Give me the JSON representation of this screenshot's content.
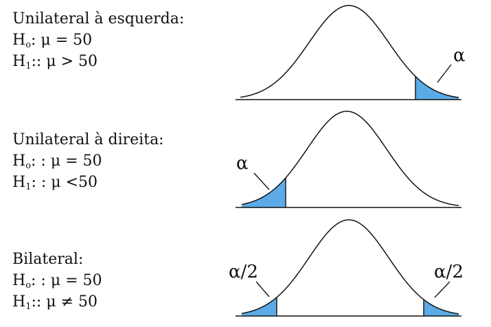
{
  "panels": [
    {
      "title": "Unilateral à esquerda:",
      "h0": ": μ = 50",
      "h1": ":: μ > 50",
      "alpha_label": "α"
    },
    {
      "title": "Unilateral à direita:",
      "h0": ": : μ = 50",
      "h1": ": : μ <50",
      "alpha_label": "α"
    },
    {
      "title": "Bilateral:",
      "h0": ": : μ = 50",
      "h1": ":: μ ≠ 50",
      "alpha_left": "α/2",
      "alpha_right": "α/2"
    }
  ],
  "h_symbol": "H",
  "h0_sub": "o",
  "h1_sub": "1",
  "colors": {
    "shade": "#5aabe6",
    "curve": "#111111"
  }
}
